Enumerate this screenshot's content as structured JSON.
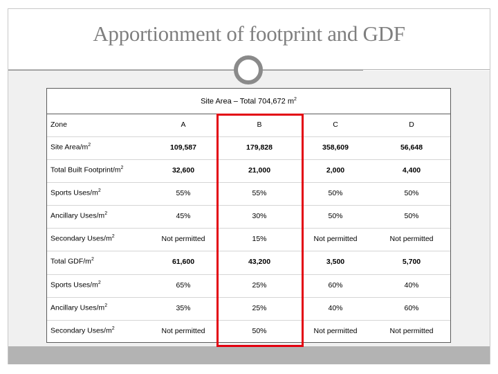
{
  "slide": {
    "title": "Apportionment of footprint and GDF"
  },
  "table": {
    "header": {
      "text": "Site Area – Total 704,672 m",
      "superscript": "2"
    },
    "columns": [
      "Zone",
      "A",
      "B",
      "C",
      "D"
    ],
    "rows": [
      {
        "label": "Site Area/m",
        "sup": "2",
        "values": [
          "109,587",
          "179,828",
          "358,609",
          "56,648"
        ],
        "bold": true
      },
      {
        "label": "Total Built Footprint/m",
        "sup": "2",
        "values": [
          "32,600",
          "21,000",
          "2,000",
          "4,400"
        ],
        "bold": true
      },
      {
        "label": "Sports Uses/m",
        "sup": "2",
        "values": [
          "55%",
          "55%",
          "50%",
          "50%"
        ],
        "bold": false
      },
      {
        "label": "Ancillary Uses/m",
        "sup": "2",
        "values": [
          "45%",
          "30%",
          "50%",
          "50%"
        ],
        "bold": false
      },
      {
        "label": "Secondary Uses/m",
        "sup": "2",
        "values": [
          "Not permitted",
          "15%",
          "Not permitted",
          "Not permitted"
        ],
        "bold": false
      },
      {
        "label": "Total GDF/m",
        "sup": "2",
        "values": [
          "61,600",
          "43,200",
          "3,500",
          "5,700"
        ],
        "bold": true
      },
      {
        "label": "Sports Uses/m",
        "sup": "2",
        "values": [
          "65%",
          "25%",
          "60%",
          "40%"
        ],
        "bold": false
      },
      {
        "label": "Ancillary Uses/m",
        "sup": "2",
        "values": [
          "35%",
          "25%",
          "40%",
          "60%"
        ],
        "bold": false
      },
      {
        "label": "Secondary Uses/m",
        "sup": "2",
        "values": [
          "Not permitted",
          "50%",
          "Not permitted",
          "Not permitted"
        ],
        "bold": false
      }
    ]
  },
  "colors": {
    "highlight": "#e3000f",
    "title": "#7f7f7f",
    "bottom_bar": "#b3b3b3"
  }
}
